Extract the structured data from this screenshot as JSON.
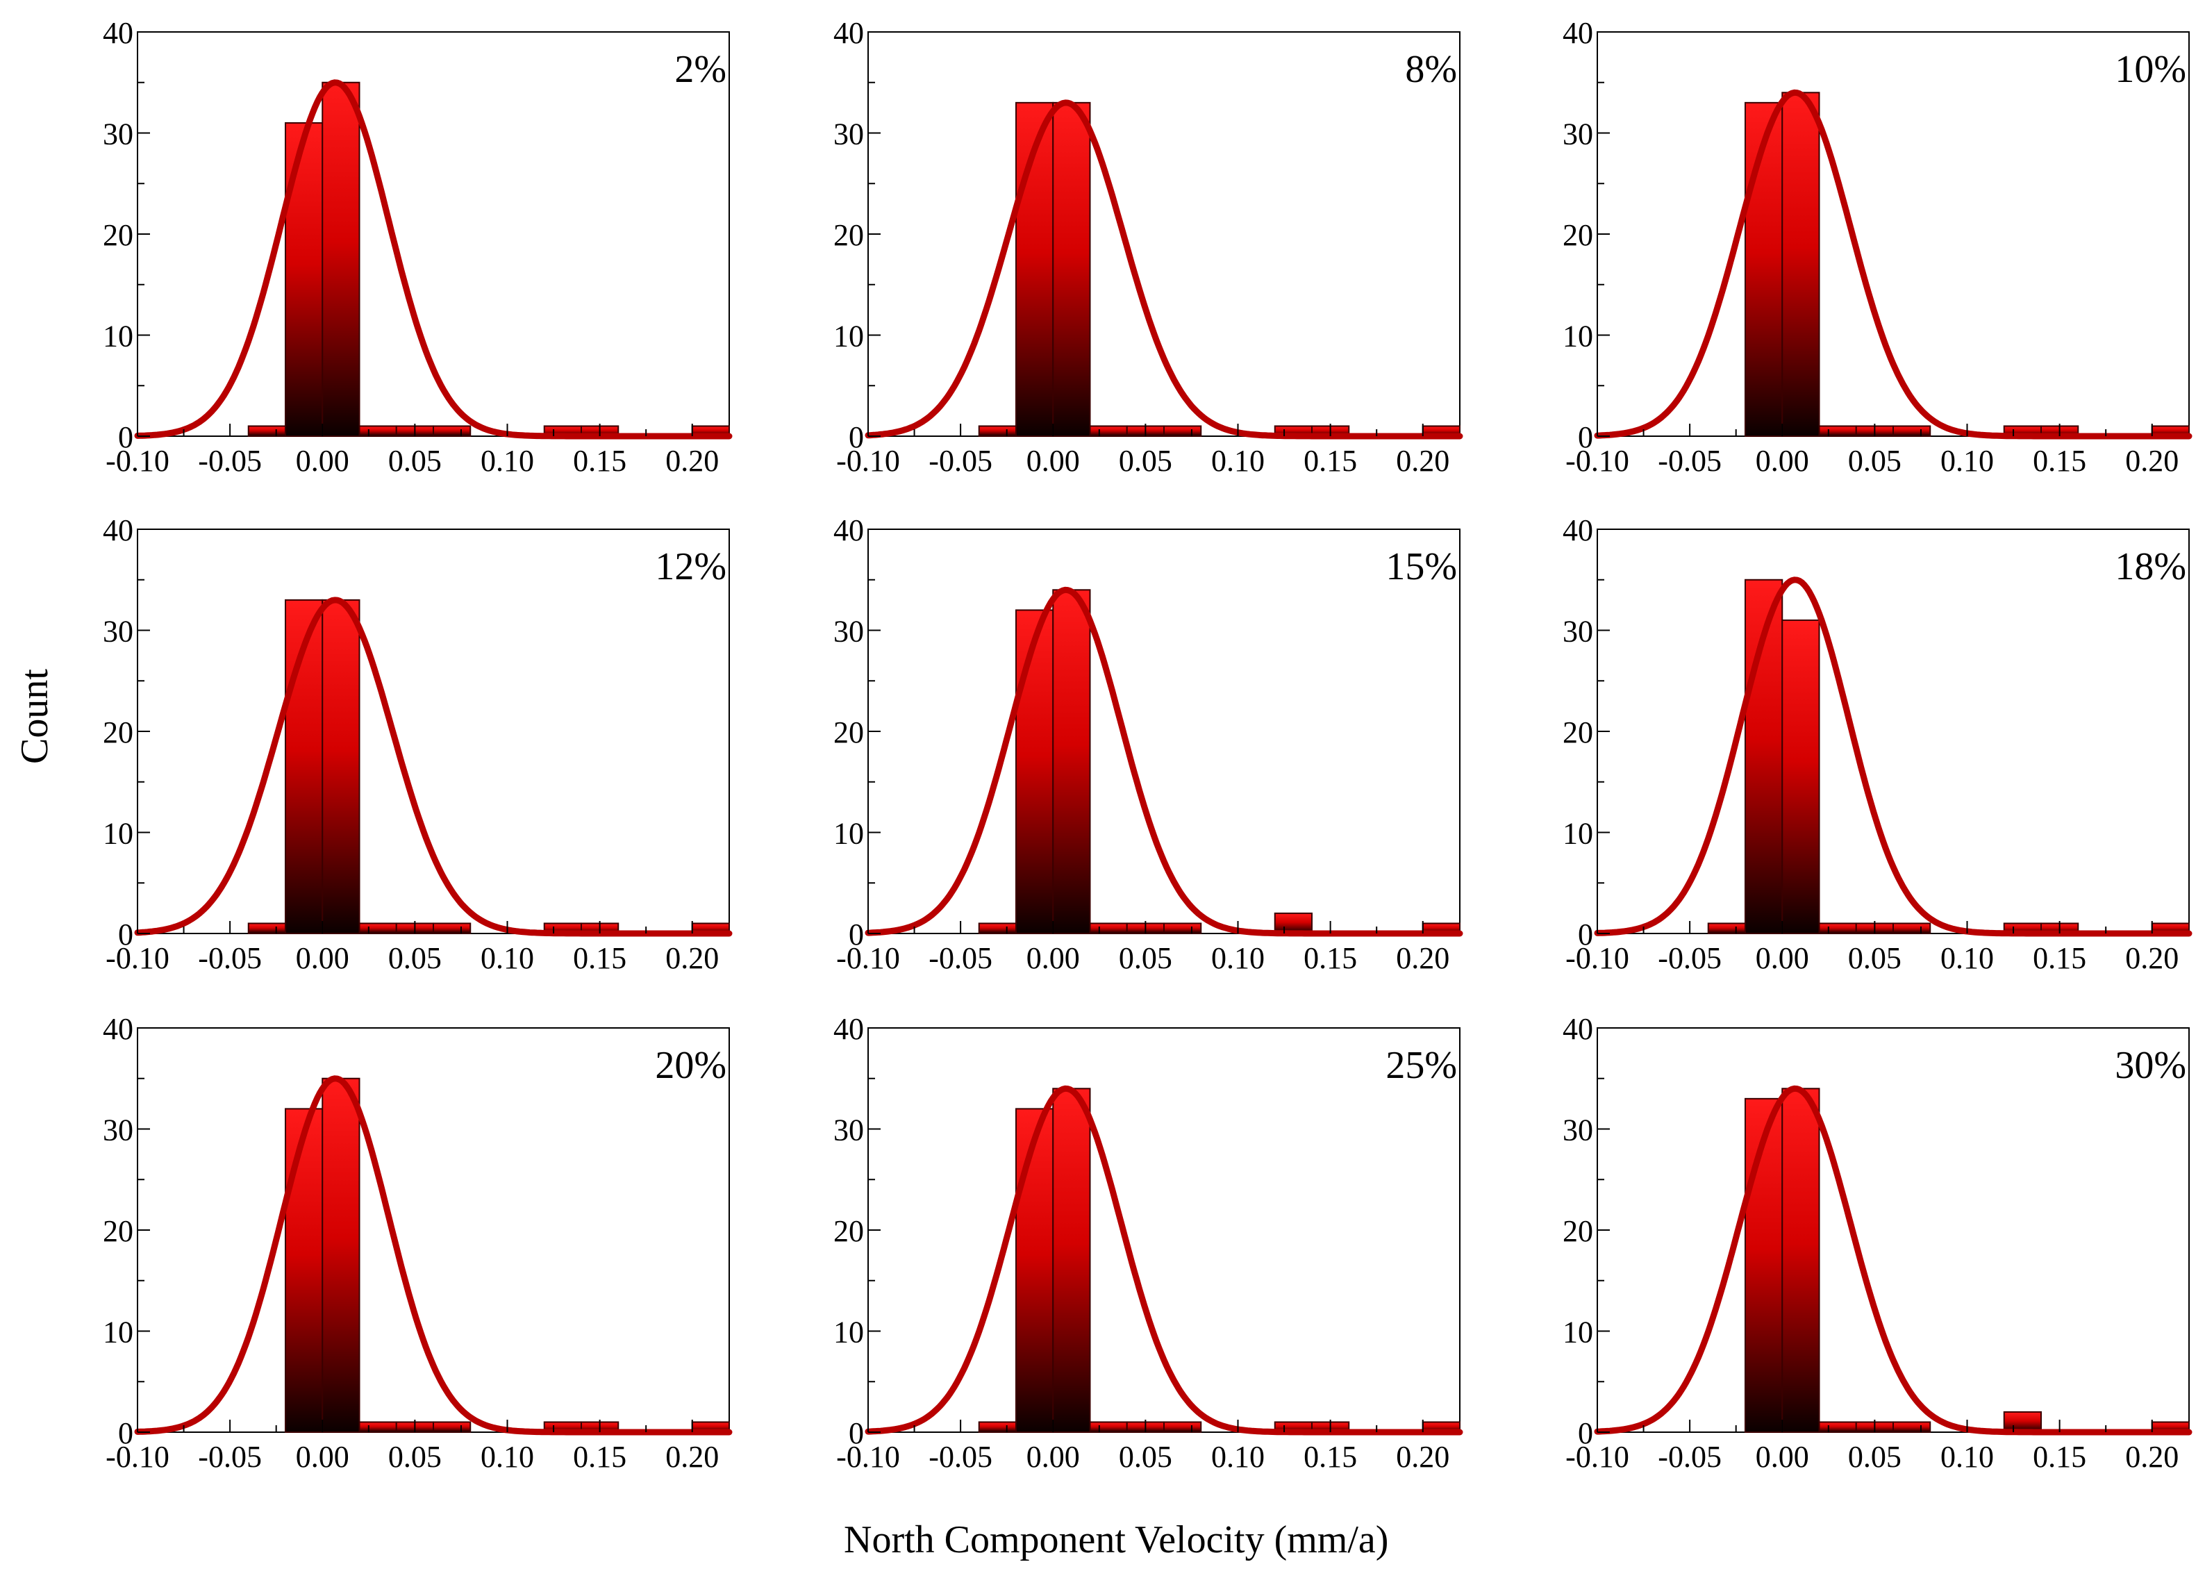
{
  "axis_labels": {
    "x": "North Component Velocity (mm/a)",
    "y": "Count"
  },
  "colors": {
    "bar_top": "#ff1a1a",
    "bar_bottom": "#0a0000",
    "bar_outline": "#3a0000",
    "fit_curve": "#b80000",
    "axis": "#000000"
  },
  "chart_data": [
    {
      "type": "bar",
      "label": "2%",
      "bin_edges": [
        -0.04,
        -0.02,
        0.0,
        0.02,
        0.04,
        0.06,
        0.08,
        0.1,
        0.12,
        0.14,
        0.16,
        0.18,
        0.2,
        0.22
      ],
      "counts": [
        1,
        31,
        35,
        1,
        1,
        1,
        0,
        0,
        1,
        1,
        0,
        0,
        1
      ],
      "fit": {
        "mean": 0.007,
        "sd": 0.029,
        "peak": 35
      },
      "xlim": [
        -0.1,
        0.22
      ],
      "ylim": [
        0,
        40
      ],
      "xticks": [
        "-0.10",
        "-0.05",
        "0.00",
        "0.05",
        "0.10",
        "0.15",
        "0.20"
      ],
      "yticks": [
        "0",
        "10",
        "20",
        "30",
        "40"
      ]
    },
    {
      "type": "bar",
      "label": "8%",
      "bin_edges": [
        -0.04,
        -0.02,
        0.0,
        0.02,
        0.04,
        0.06,
        0.08,
        0.1,
        0.12,
        0.14,
        0.16,
        0.18,
        0.2,
        0.22
      ],
      "counts": [
        1,
        33,
        33,
        1,
        1,
        1,
        0,
        0,
        1,
        1,
        0,
        0,
        1
      ],
      "fit": {
        "mean": 0.007,
        "sd": 0.031,
        "peak": 33
      },
      "xlim": [
        -0.1,
        0.22
      ],
      "ylim": [
        0,
        40
      ],
      "xticks": [
        "-0.10",
        "-0.05",
        "0.00",
        "0.05",
        "0.10",
        "0.15",
        "0.20"
      ],
      "yticks": [
        "0",
        "10",
        "20",
        "30",
        "40"
      ]
    },
    {
      "type": "bar",
      "label": "10%",
      "bin_edges": [
        -0.04,
        -0.02,
        0.0,
        0.02,
        0.04,
        0.06,
        0.08,
        0.1,
        0.12,
        0.14,
        0.16,
        0.18,
        0.2,
        0.22
      ],
      "counts": [
        0,
        33,
        34,
        1,
        1,
        1,
        0,
        0,
        1,
        1,
        0,
        0,
        1
      ],
      "fit": {
        "mean": 0.007,
        "sd": 0.03,
        "peak": 34
      },
      "xlim": [
        -0.1,
        0.22
      ],
      "ylim": [
        0,
        40
      ],
      "xticks": [
        "-0.10",
        "-0.05",
        "0.00",
        "0.05",
        "0.10",
        "0.15",
        "0.20"
      ],
      "yticks": [
        "0",
        "10",
        "20",
        "30",
        "40"
      ]
    },
    {
      "type": "bar",
      "label": "12%",
      "bin_edges": [
        -0.04,
        -0.02,
        0.0,
        0.02,
        0.04,
        0.06,
        0.08,
        0.1,
        0.12,
        0.14,
        0.16,
        0.18,
        0.2,
        0.22
      ],
      "counts": [
        1,
        33,
        33,
        1,
        1,
        1,
        0,
        0,
        1,
        1,
        0,
        0,
        1
      ],
      "fit": {
        "mean": 0.007,
        "sd": 0.031,
        "peak": 33
      },
      "xlim": [
        -0.1,
        0.22
      ],
      "ylim": [
        0,
        40
      ],
      "xticks": [
        "-0.10",
        "-0.05",
        "0.00",
        "0.05",
        "0.10",
        "0.15",
        "0.20"
      ],
      "yticks": [
        "0",
        "10",
        "20",
        "30",
        "40"
      ]
    },
    {
      "type": "bar",
      "label": "15%",
      "bin_edges": [
        -0.04,
        -0.02,
        0.0,
        0.02,
        0.04,
        0.06,
        0.08,
        0.1,
        0.12,
        0.14,
        0.16,
        0.18,
        0.2,
        0.22
      ],
      "counts": [
        1,
        32,
        34,
        1,
        1,
        1,
        0,
        0,
        2,
        0,
        0,
        0,
        1
      ],
      "fit": {
        "mean": 0.007,
        "sd": 0.03,
        "peak": 34
      },
      "xlim": [
        -0.1,
        0.22
      ],
      "ylim": [
        0,
        40
      ],
      "xticks": [
        "-0.10",
        "-0.05",
        "0.00",
        "0.05",
        "0.10",
        "0.15",
        "0.20"
      ],
      "yticks": [
        "0",
        "10",
        "20",
        "30",
        "40"
      ]
    },
    {
      "type": "bar",
      "label": "18%",
      "bin_edges": [
        -0.04,
        -0.02,
        0.0,
        0.02,
        0.04,
        0.06,
        0.08,
        0.1,
        0.12,
        0.14,
        0.16,
        0.18,
        0.2,
        0.22
      ],
      "counts": [
        1,
        35,
        31,
        1,
        1,
        1,
        0,
        0,
        1,
        1,
        0,
        0,
        1
      ],
      "fit": {
        "mean": 0.007,
        "sd": 0.029,
        "peak": 35
      },
      "xlim": [
        -0.1,
        0.22
      ],
      "ylim": [
        0,
        40
      ],
      "xticks": [
        "-0.10",
        "-0.05",
        "0.00",
        "0.05",
        "0.10",
        "0.15",
        "0.20"
      ],
      "yticks": [
        "0",
        "10",
        "20",
        "30",
        "40"
      ]
    },
    {
      "type": "bar",
      "label": "20%",
      "bin_edges": [
        -0.04,
        -0.02,
        0.0,
        0.02,
        0.04,
        0.06,
        0.08,
        0.1,
        0.12,
        0.14,
        0.16,
        0.18,
        0.2,
        0.22
      ],
      "counts": [
        0,
        32,
        35,
        1,
        1,
        1,
        0,
        0,
        1,
        1,
        0,
        0,
        1
      ],
      "fit": {
        "mean": 0.007,
        "sd": 0.029,
        "peak": 35
      },
      "xlim": [
        -0.1,
        0.22
      ],
      "ylim": [
        0,
        40
      ],
      "xticks": [
        "-0.10",
        "-0.05",
        "0.00",
        "0.05",
        "0.10",
        "0.15",
        "0.20"
      ],
      "yticks": [
        "0",
        "10",
        "20",
        "30",
        "40"
      ]
    },
    {
      "type": "bar",
      "label": "25%",
      "bin_edges": [
        -0.04,
        -0.02,
        0.0,
        0.02,
        0.04,
        0.06,
        0.08,
        0.1,
        0.12,
        0.14,
        0.16,
        0.18,
        0.2,
        0.22
      ],
      "counts": [
        1,
        32,
        34,
        1,
        1,
        1,
        0,
        0,
        1,
        1,
        0,
        0,
        1
      ],
      "fit": {
        "mean": 0.007,
        "sd": 0.03,
        "peak": 34
      },
      "xlim": [
        -0.1,
        0.22
      ],
      "ylim": [
        0,
        40
      ],
      "xticks": [
        "-0.10",
        "-0.05",
        "0.00",
        "0.05",
        "0.10",
        "0.15",
        "0.20"
      ],
      "yticks": [
        "0",
        "10",
        "20",
        "30",
        "40"
      ]
    },
    {
      "type": "bar",
      "label": "30%",
      "bin_edges": [
        -0.04,
        -0.02,
        0.0,
        0.02,
        0.04,
        0.06,
        0.08,
        0.1,
        0.12,
        0.14,
        0.16,
        0.18,
        0.2,
        0.22
      ],
      "counts": [
        0,
        33,
        34,
        1,
        1,
        1,
        0,
        0,
        2,
        0,
        0,
        0,
        1
      ],
      "fit": {
        "mean": 0.007,
        "sd": 0.03,
        "peak": 34
      },
      "xlim": [
        -0.1,
        0.22
      ],
      "ylim": [
        0,
        40
      ],
      "xticks": [
        "-0.10",
        "-0.05",
        "0.00",
        "0.05",
        "0.10",
        "0.15",
        "0.20"
      ],
      "yticks": [
        "0",
        "10",
        "20",
        "30",
        "40"
      ]
    }
  ]
}
